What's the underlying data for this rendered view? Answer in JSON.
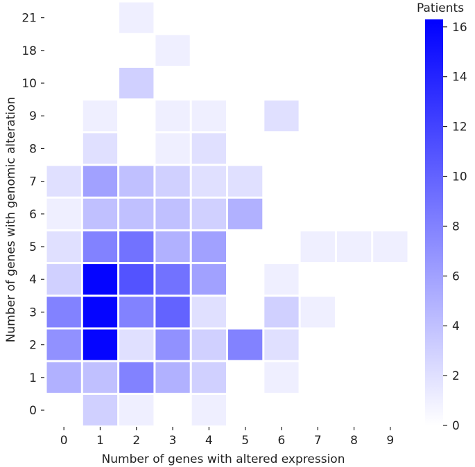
{
  "chart_data": {
    "type": "heatmap",
    "xlabel": "Number of genes with altered expression",
    "ylabel": "Number of genes with genomic alteration",
    "x_categories": [
      "0",
      "1",
      "2",
      "3",
      "4",
      "5",
      "6",
      "7",
      "8",
      "9"
    ],
    "y_categories": [
      "21",
      "18",
      "10",
      "9",
      "8",
      "7",
      "6",
      "5",
      "4",
      "3",
      "2",
      "1",
      "0"
    ],
    "values": [
      [
        0,
        0,
        1,
        0,
        0,
        0,
        0,
        0,
        0,
        0
      ],
      [
        0,
        0,
        0,
        1,
        0,
        0,
        0,
        0,
        0,
        0
      ],
      [
        0,
        0,
        3,
        0,
        0,
        0,
        0,
        0,
        0,
        0
      ],
      [
        0,
        1,
        0,
        1,
        1,
        0,
        2,
        0,
        0,
        0
      ],
      [
        0,
        2,
        0,
        1,
        2,
        0,
        0,
        0,
        0,
        0
      ],
      [
        2,
        6,
        4,
        3,
        2,
        2,
        0,
        0,
        0,
        0
      ],
      [
        1,
        4,
        4,
        4,
        3,
        5,
        0,
        0,
        0,
        0
      ],
      [
        2,
        8,
        9,
        5,
        6,
        0,
        0,
        1,
        1,
        1
      ],
      [
        3,
        16,
        11,
        9,
        6,
        0,
        1,
        0,
        0,
        0
      ],
      [
        8,
        16,
        8,
        10,
        2,
        0,
        3,
        1,
        0,
        0
      ],
      [
        7,
        16,
        2,
        7,
        3,
        8,
        2,
        0,
        0,
        0
      ],
      [
        5,
        4,
        8,
        5,
        3,
        0,
        1,
        0,
        0,
        0
      ],
      [
        0,
        3,
        1,
        0,
        1,
        0,
        0,
        0,
        0,
        0
      ]
    ],
    "colorbar": {
      "title": "Patients",
      "min": 0,
      "max": 16.3,
      "ticks": [
        0,
        2,
        4,
        6,
        8,
        10,
        12,
        14,
        16
      ],
      "color_low": "#ffffff",
      "color_high": "#0000ff"
    },
    "cell_border_color": "#ffffff"
  }
}
